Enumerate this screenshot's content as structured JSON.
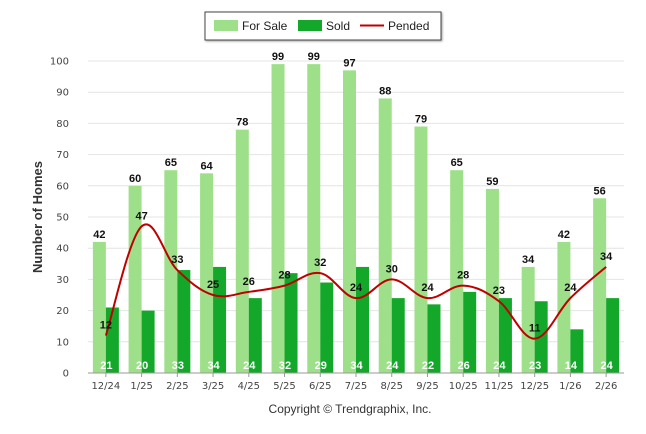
{
  "chart_data": {
    "type": "bar",
    "title": "",
    "xlabel": "",
    "ylabel": "Number of Homes",
    "ylim": [
      0,
      100
    ],
    "yticks": [
      0,
      10,
      20,
      30,
      40,
      50,
      60,
      70,
      80,
      90,
      100
    ],
    "grid": true,
    "legend_position": "top-center",
    "categories": [
      "12/24",
      "1/25",
      "2/25",
      "3/25",
      "4/25",
      "5/25",
      "6/25",
      "7/25",
      "8/25",
      "9/25",
      "10/25",
      "11/25",
      "12/25",
      "1/26",
      "2/26"
    ],
    "series": [
      {
        "name": "For Sale",
        "type": "bar",
        "color": "#9ee08a",
        "values": [
          42,
          60,
          65,
          64,
          78,
          99,
          99,
          97,
          88,
          79,
          65,
          59,
          34,
          42,
          56
        ]
      },
      {
        "name": "Sold",
        "type": "bar",
        "color": "#14a82a",
        "values": [
          21,
          20,
          33,
          34,
          24,
          32,
          29,
          34,
          24,
          22,
          26,
          24,
          23,
          14,
          24
        ]
      },
      {
        "name": "Pended",
        "type": "line",
        "color": "#c00000",
        "values": [
          12,
          47,
          33,
          25,
          26,
          28,
          32,
          24,
          30,
          24,
          28,
          23,
          11,
          24,
          34
        ]
      }
    ]
  },
  "footer": {
    "copyright": "Copyright © Trendgraphix, Inc."
  }
}
